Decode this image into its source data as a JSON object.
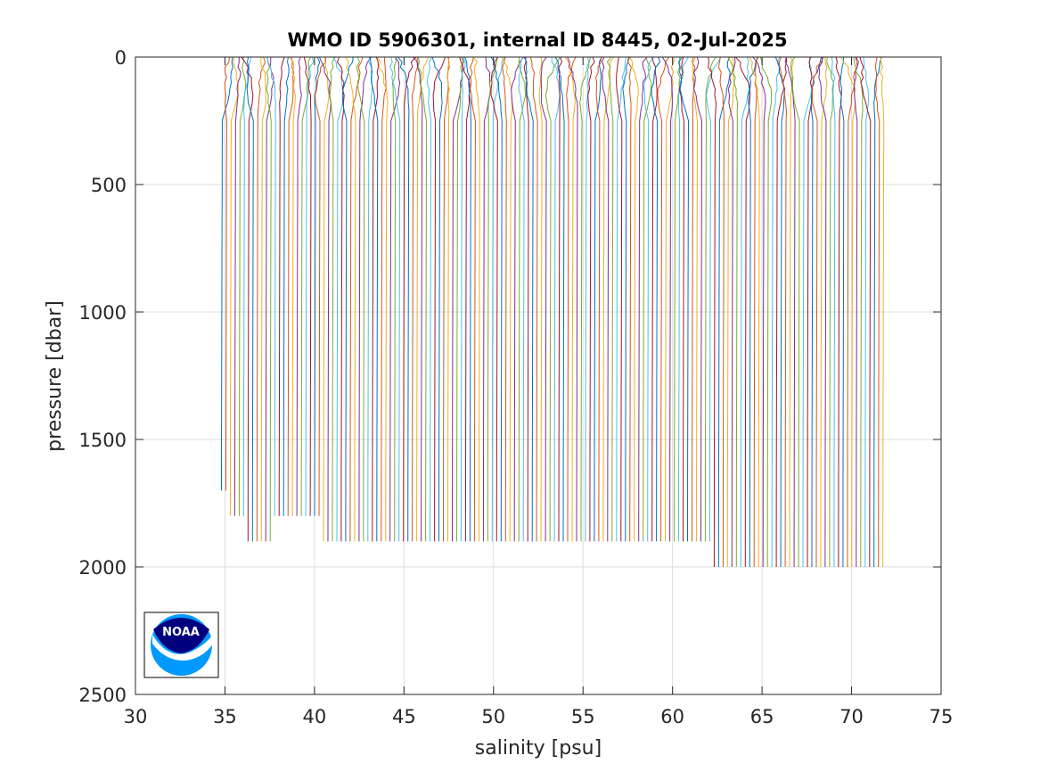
{
  "chart_data": {
    "type": "line",
    "title": "WMO ID 5906301, internal ID 8445, 02-Jul-2025",
    "xlabel": "salinity [psu]",
    "ylabel": "pressure [dbar]",
    "xlim": [
      30,
      75
    ],
    "ylim": [
      0,
      2500
    ],
    "y_reversed": true,
    "grid": true,
    "legend": "none",
    "x_ticks": [
      "30",
      "35",
      "40",
      "45",
      "50",
      "55",
      "60",
      "65",
      "70",
      "75"
    ],
    "y_ticks": [
      "0",
      "500",
      "1000",
      "1500",
      "2000",
      "2500"
    ],
    "series_description": "Stacked salinity profiles, each successive profile offset in salinity",
    "num_profiles": 150,
    "first_profile_deep_salinity": 34.85,
    "last_profile_deep_salinity": 71.8,
    "surface_variability_psu": 0.6,
    "mixed_depth_dbar": 250,
    "profile_max_pressure_dbar_groups": [
      {
        "from_salinity": 34.85,
        "to_salinity": 35.2,
        "max_pressure": 1700
      },
      {
        "from_salinity": 35.2,
        "to_salinity": 36.1,
        "max_pressure": 1800
      },
      {
        "from_salinity": 36.1,
        "to_salinity": 37.6,
        "max_pressure": 1900
      },
      {
        "from_salinity": 37.6,
        "to_salinity": 40.4,
        "max_pressure": 1800
      },
      {
        "from_salinity": 40.4,
        "to_salinity": 62.2,
        "max_pressure": 1900
      },
      {
        "from_salinity": 62.2,
        "to_salinity": 71.8,
        "max_pressure": 2000
      }
    ],
    "colors": [
      "#0072BD",
      "#D95319",
      "#EDB120",
      "#7E2F8E",
      "#77AC30",
      "#4DBEEE",
      "#A2142F"
    ]
  },
  "logo": {
    "name": "noaa-logo",
    "text": "NOAA",
    "colors": {
      "dark": "#00007f",
      "light": "#0099ff"
    }
  }
}
